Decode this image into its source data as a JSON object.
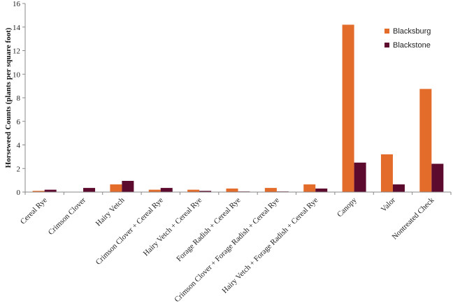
{
  "chart_data": {
    "type": "bar",
    "title": "",
    "xlabel": "",
    "ylabel": "Horseweed Counts (plants per square foot)",
    "ylim": [
      0,
      16
    ],
    "yticks": [
      0,
      2,
      4,
      6,
      8,
      10,
      12,
      14,
      16
    ],
    "grid": false,
    "legend_position": "top-right",
    "categories": [
      "Cereal Rye",
      "Crimson Clover",
      "Hairy Vetch",
      "Crimson Clover + Cereal Rye",
      "Hairy Vetch + Cereal Rye",
      "Forage Radish + Cereal Rye",
      "Crimson Clover + Forage Radish + Cereal Rye",
      "Hairy Vetch + Forage Radish + Cereal Rye",
      "Canopy",
      "Valor",
      "Nontreated Check"
    ],
    "series": [
      {
        "name": "Blacksburg",
        "color": "#E46C2B",
        "values": [
          0.1,
          0.0,
          0.65,
          0.2,
          0.2,
          0.3,
          0.35,
          0.65,
          14.2,
          3.2,
          8.75
        ]
      },
      {
        "name": "Blackstone",
        "color": "#5C0A2E",
        "values": [
          0.2,
          0.35,
          0.95,
          0.35,
          0.1,
          0.05,
          0.05,
          0.3,
          2.5,
          0.65,
          2.4
        ]
      }
    ]
  }
}
